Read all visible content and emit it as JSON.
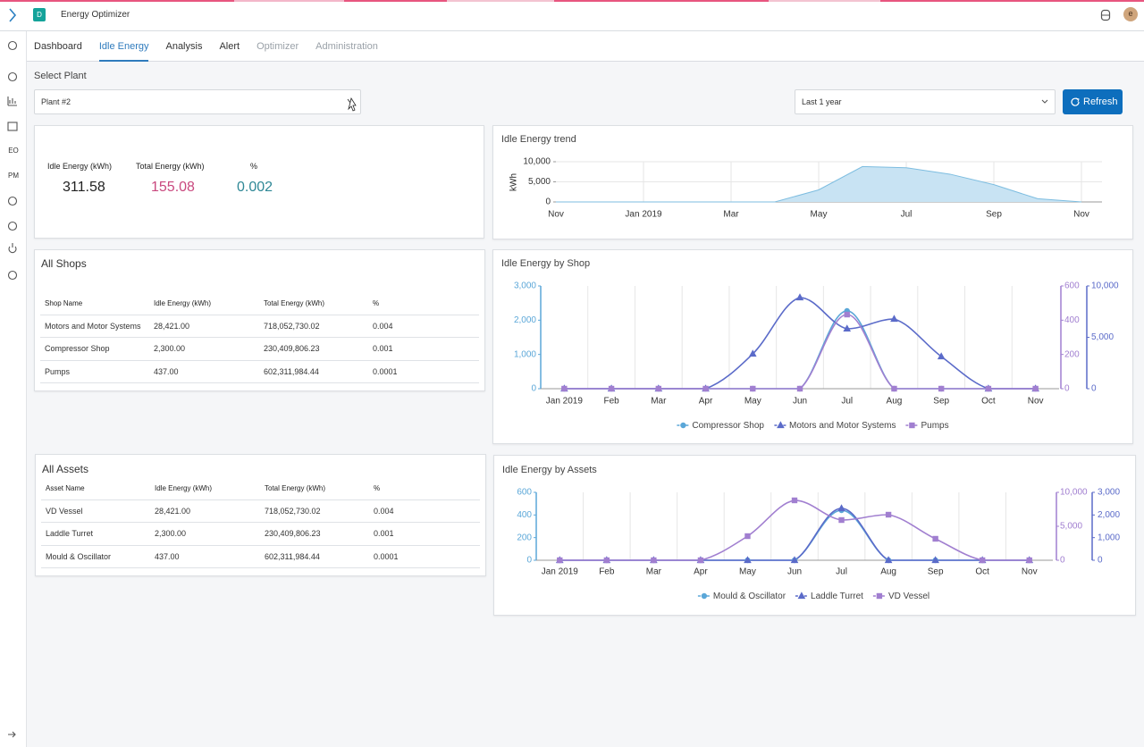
{
  "app": {
    "badge": "D",
    "title": "Energy Optimizer",
    "avatar": "e"
  },
  "sidebar": {
    "items": [
      "EO",
      "PM"
    ]
  },
  "tabs": {
    "items": [
      "Dashboard",
      "Idle Energy",
      "Analysis",
      "Alert",
      "Optimizer",
      "Administration"
    ],
    "active": 1,
    "disabled": [
      4,
      5
    ]
  },
  "filters": {
    "plant_label": "Select Plant",
    "plant": "Plant #2",
    "period": "Last 1 year",
    "refresh": "Refresh"
  },
  "summary": [
    {
      "label": "Idle Energy (kWh)",
      "value": "311.58",
      "color": "#222222"
    },
    {
      "label": "Total Energy (kWh)",
      "value": "155.08",
      "color": "#c9487e"
    },
    {
      "label": "%",
      "value": "0.002",
      "color": "#2f8896"
    }
  ],
  "shops": {
    "title": "All Shops",
    "columns": [
      "Shop Name",
      "Idle Energy (kWh)",
      "Total Energy (kWh)",
      "%"
    ],
    "rows": [
      [
        "Motors and Motor Systems",
        "28,421.00",
        "718,052,730.02",
        "0.004"
      ],
      [
        "Compressor Shop",
        "2,300.00",
        "230,409,806.23",
        "0.001"
      ],
      [
        "Pumps",
        "437.00",
        "602,311,984.44",
        "0.0001"
      ]
    ]
  },
  "assets": {
    "title": "All Assets",
    "columns": [
      "Asset Name",
      "Idle Energy (kWh)",
      "Total Energy (kWh)",
      "%"
    ],
    "rows": [
      [
        "VD Vessel",
        "28,421.00",
        "718,052,730.02",
        "0.004"
      ],
      [
        "Laddle Turret",
        "2,300.00",
        "230,409,806.23",
        "0.001"
      ],
      [
        "Mould & Oscillator",
        "437.00",
        "602,311,984.44",
        "0.0001"
      ]
    ]
  },
  "chart_data": [
    {
      "type": "area",
      "title": "Idle Energy trend",
      "ylabel": "kWh",
      "categories": [
        "Nov",
        null,
        "Jan 2019",
        null,
        "Mar",
        null,
        "May",
        null,
        "Jul",
        null,
        "Sep",
        null,
        "Nov"
      ],
      "values": [
        0,
        0,
        0,
        0,
        0,
        0,
        3000,
        8800,
        8500,
        6900,
        4300,
        800,
        0
      ],
      "color": "#7dbde0",
      "fill": "#c8e3f3",
      "ylim": [
        0,
        10000
      ],
      "yticks": [
        0,
        {
          "value": 5000,
          "label": "5,000"
        },
        {
          "value": 10000,
          "label": "10,000"
        }
      ],
      "grid": true
    },
    {
      "type": "line",
      "title": "Idle Energy by Shop",
      "smooth": true,
      "grid": true,
      "legend": "bottom",
      "categories": [
        "Jan 2019",
        "Feb",
        "Mar",
        "Apr",
        "May",
        "Jun",
        "Jul",
        "Aug",
        "Sep",
        "Oct",
        "Nov"
      ],
      "series": [
        {
          "name": "Compressor Shop",
          "color": "#5ba7d8",
          "marker": "circle",
          "axis": "y",
          "values": [
            0,
            0,
            0,
            0,
            0,
            0,
            2270,
            0,
            0,
            0,
            0
          ]
        },
        {
          "name": "Motors and Motor Systems",
          "color": "#5b6bc9",
          "marker": "triangle",
          "axis": "y3",
          "values": [
            0,
            0,
            0,
            0,
            3390,
            8870,
            5830,
            6780,
            3130,
            0,
            0
          ]
        },
        {
          "name": "Pumps",
          "color": "#a17fd0",
          "marker": "square",
          "axis": "y2",
          "values": [
            0,
            0,
            0,
            0,
            0,
            0,
            433,
            0,
            0,
            0,
            0
          ]
        }
      ],
      "ylim": [
        0,
        3000
      ],
      "yticks": [
        0,
        {
          "value": 1000,
          "label": "1,000"
        },
        {
          "value": 2000,
          "label": "2,000"
        },
        {
          "value": 3000,
          "label": "3,000"
        }
      ],
      "y2lim": [
        0,
        600
      ],
      "y2ticks": [
        0,
        200,
        400,
        600
      ],
      "y3lim": [
        0,
        10000
      ],
      "y3ticks": [
        0,
        {
          "value": 5000,
          "label": "5,000"
        },
        {
          "value": 10000,
          "label": "10,000"
        }
      ]
    },
    {
      "type": "line",
      "title": "Idle Energy by Assets",
      "smooth": true,
      "grid": true,
      "legend": "bottom",
      "categories": [
        "Jan 2019",
        "Feb",
        "Mar",
        "Apr",
        "May",
        "Jun",
        "Jul",
        "Aug",
        "Sep",
        "Oct",
        "Nov"
      ],
      "series": [
        {
          "name": "Mould & Oscillator",
          "color": "#5ba7d8",
          "marker": "circle",
          "axis": "y",
          "values": [
            0,
            0,
            0,
            0,
            0,
            0,
            442,
            0,
            0,
            0,
            0
          ]
        },
        {
          "name": "Laddle Turret",
          "color": "#5b6bc9",
          "marker": "triangle",
          "axis": "y3",
          "values": [
            0,
            0,
            0,
            0,
            0,
            0,
            2290,
            0,
            0,
            0,
            0
          ]
        },
        {
          "name": "VD Vessel",
          "color": "#a17fd0",
          "marker": "square",
          "axis": "y2",
          "values": [
            0,
            0,
            0,
            0,
            3550,
            8820,
            5920,
            6710,
            3160,
            0,
            0
          ]
        }
      ],
      "ylim": [
        0,
        600
      ],
      "yticks": [
        0,
        200,
        400,
        600
      ],
      "y2lim": [
        0,
        10000
      ],
      "y2ticks": [
        0,
        {
          "value": 5000,
          "label": "5,000"
        },
        {
          "value": 10000,
          "label": "10,000"
        }
      ],
      "y3lim": [
        0,
        3000
      ],
      "y3ticks": [
        0,
        {
          "value": 1000,
          "label": "1,000"
        },
        {
          "value": 2000,
          "label": "2,000"
        },
        {
          "value": 3000,
          "label": "3,000"
        }
      ]
    }
  ]
}
